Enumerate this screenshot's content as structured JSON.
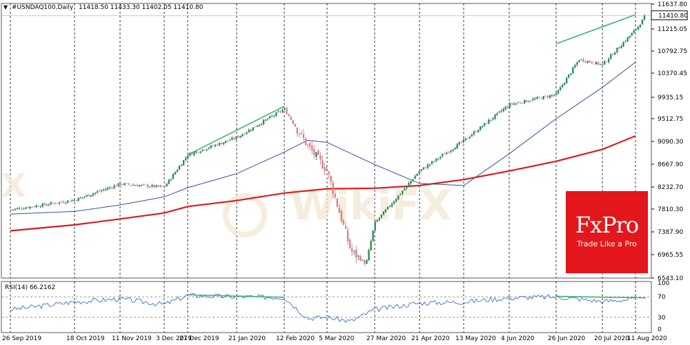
{
  "header": {
    "symbol": "#USNDAQ100,Daily",
    "ohlc": "11418.50 11433.30 11402.05 11410.80"
  },
  "price_tag": "11410.80",
  "brand": {
    "name": "FxPro",
    "tagline": "Trade Like a Pro"
  },
  "watermark": "WikiFX",
  "colors": {
    "bull": "#2e8b57",
    "bear": "#d9818c",
    "ma_fast": "#2f4fa0",
    "ma_slow": "#e0191b",
    "trend": "#3cb371",
    "rsi": "#3a6fc4",
    "brand_bg": "#e3171c"
  },
  "chart_data": [
    {
      "type": "candlestick",
      "title": "#USNDAQ100,Daily",
      "y_ticks": [
        "11637.80",
        "11215.05",
        "10792.75",
        "10370.45",
        "9935.15",
        "9512.75",
        "9090.30",
        "8667.90",
        "8232.70",
        "7810.30",
        "7387.90",
        "6965.55",
        "6543.10"
      ],
      "ylim": [
        6543.1,
        11637.8
      ],
      "x_ticks": [
        "26 Sep 2019",
        "18 Oct 2019",
        "11 Nov 2019",
        "3 Dec 2019",
        "27 Dec 2019",
        "21 Jan 2020",
        "12 Feb 2020",
        "5 Mar 2020",
        "27 Mar 2020",
        "21 Apr 2020",
        "13 May 2020",
        "4 Jun 2020",
        "26 Jun 2020",
        "20 Jul 2020",
        "11 Aug 2020"
      ],
      "close_path": [
        [
          "26 Sep 2019",
          7810
        ],
        [
          "18 Oct 2019",
          7990
        ],
        [
          "11 Nov 2019",
          8290
        ],
        [
          "3 Dec 2019",
          8230
        ],
        [
          "27 Dec 2019",
          8830
        ],
        [
          "21 Jan 2020",
          9150
        ],
        [
          "12 Feb 2020",
          9680
        ],
        [
          "24 Feb 2020",
          9000
        ],
        [
          "5 Mar 2020",
          8540
        ],
        [
          "16 Mar 2020",
          7050
        ],
        [
          "23 Mar 2020",
          6800
        ],
        [
          "27 Mar 2020",
          7560
        ],
        [
          "21 Apr 2020",
          8530
        ],
        [
          "13 May 2020",
          9090
        ],
        [
          "4 Jun 2020",
          9760
        ],
        [
          "26 Jun 2020",
          9950
        ],
        [
          "8 Jul 2020",
          10600
        ],
        [
          "20 Jul 2020",
          10500
        ],
        [
          "11 Aug 2020",
          11150
        ],
        [
          "18 Aug 2020",
          11410
        ]
      ],
      "ma_fast": [
        [
          "26 Sep 2019",
          7730
        ],
        [
          "18 Oct 2019",
          7780
        ],
        [
          "11 Nov 2019",
          7900
        ],
        [
          "3 Dec 2019",
          8050
        ],
        [
          "27 Dec 2019",
          8220
        ],
        [
          "21 Jan 2020",
          8480
        ],
        [
          "12 Feb 2020",
          8880
        ],
        [
          "24 Feb 2020",
          9100
        ],
        [
          "5 Mar 2020",
          9060
        ],
        [
          "27 Mar 2020",
          8650
        ],
        [
          "21 Apr 2020",
          8300
        ],
        [
          "13 May 2020",
          8260
        ],
        [
          "4 Jun 2020",
          8850
        ],
        [
          "26 Jun 2020",
          9500
        ],
        [
          "20 Jul 2020",
          10080
        ],
        [
          "11 Aug 2020",
          10550
        ]
      ],
      "ma_slow": [
        [
          "26 Sep 2019",
          7420
        ],
        [
          "18 Oct 2019",
          7530
        ],
        [
          "11 Nov 2019",
          7640
        ],
        [
          "3 Dec 2019",
          7750
        ],
        [
          "27 Dec 2019",
          7870
        ],
        [
          "21 Jan 2020",
          7980
        ],
        [
          "12 Feb 2020",
          8120
        ],
        [
          "5 Mar 2020",
          8200
        ],
        [
          "27 Mar 2020",
          8210
        ],
        [
          "21 Apr 2020",
          8260
        ],
        [
          "13 May 2020",
          8370
        ],
        [
          "4 Jun 2020",
          8530
        ],
        [
          "26 Jun 2020",
          8710
        ],
        [
          "20 Jul 2020",
          8930
        ],
        [
          "11 Aug 2020",
          9180
        ]
      ],
      "trendlines": [
        [
          [
            "27 Dec 2019",
            8830
          ],
          [
            "12 Feb 2020",
            9730
          ]
        ],
        [
          [
            "26 Jun 2020",
            10890
          ],
          [
            "11 Aug 2020",
            11430
          ]
        ]
      ]
    },
    {
      "type": "line",
      "title": "RSI(14) 66.2162",
      "y_ticks": [
        "100",
        "70",
        "30",
        "0"
      ],
      "ylim": [
        0,
        100
      ],
      "levels": [
        70,
        30
      ],
      "values": [
        [
          "26 Sep 2019",
          45
        ],
        [
          "18 Oct 2019",
          60
        ],
        [
          "11 Nov 2019",
          66
        ],
        [
          "3 Dec 2019",
          55
        ],
        [
          "27 Dec 2019",
          73
        ],
        [
          "21 Jan 2020",
          70
        ],
        [
          "12 Feb 2020",
          69
        ],
        [
          "24 Feb 2020",
          28
        ],
        [
          "5 Mar 2020",
          30
        ],
        [
          "16 Mar 2020",
          22
        ],
        [
          "27 Mar 2020",
          45
        ],
        [
          "21 Apr 2020",
          58
        ],
        [
          "13 May 2020",
          60
        ],
        [
          "4 Jun 2020",
          68
        ],
        [
          "26 Jun 2020",
          70
        ],
        [
          "20 Jul 2020",
          61
        ],
        [
          "11 Aug 2020",
          66
        ]
      ],
      "trendlines": [
        [
          [
            "27 Dec 2019",
            74
          ],
          [
            "12 Feb 2020",
            69
          ]
        ],
        [
          [
            "26 Jun 2020",
            71
          ],
          [
            "18 Aug 2020",
            68
          ]
        ]
      ]
    }
  ]
}
